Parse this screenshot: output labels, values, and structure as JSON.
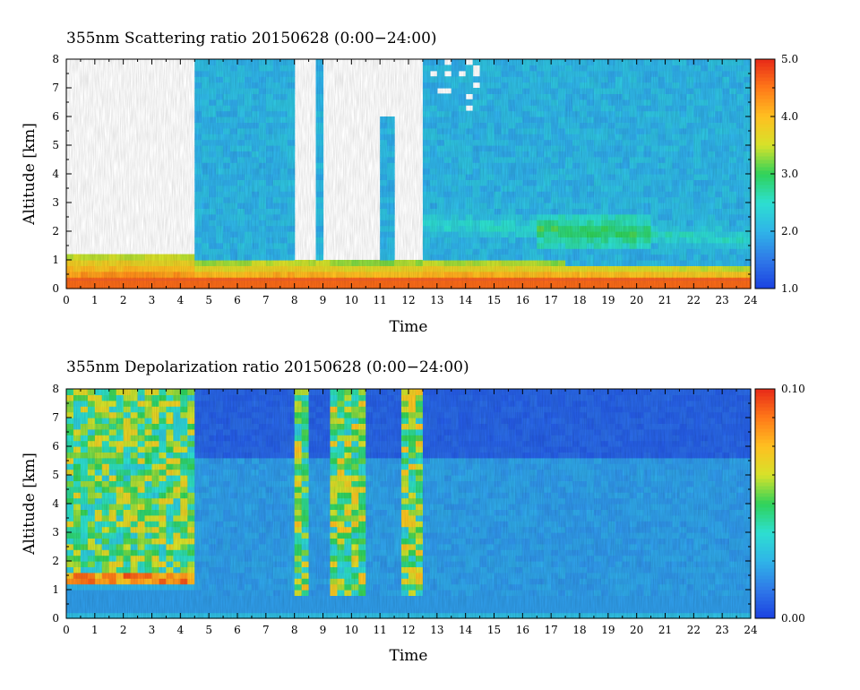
{
  "colors": {
    "colormap": [
      "#1b40e0",
      "#2f78e8",
      "#2fb4e8",
      "#2ddfd0",
      "#2fd25a",
      "#d6e22a",
      "#ffc020",
      "#ff7a18",
      "#e82a18"
    ],
    "no_data": "#ffffff",
    "ground_line": "#e55a2a"
  },
  "chart_data": [
    {
      "type": "heatmap",
      "title": "355nm Scattering ratio  20150628 (0:00−24:00)",
      "xlabel": "Time",
      "ylabel": "Altitude [km]",
      "xlim": [
        0,
        24
      ],
      "ylim": [
        0,
        8
      ],
      "xticks": [
        "0",
        "1",
        "2",
        "3",
        "4",
        "5",
        "6",
        "7",
        "8",
        "9",
        "10",
        "11",
        "12",
        "13",
        "14",
        "15",
        "16",
        "17",
        "18",
        "19",
        "20",
        "21",
        "22",
        "23",
        "24"
      ],
      "yticks": [
        "0",
        "1",
        "2",
        "3",
        "4",
        "5",
        "6",
        "7",
        "8"
      ],
      "colorbar": {
        "min": 1.0,
        "max": 5.0,
        "ticks": [
          "1.0",
          "2.0",
          "3.0",
          "4.0",
          "5.0"
        ]
      },
      "regions": [
        {
          "description": "no data above boundary layer",
          "time": [
            0,
            4.6
          ],
          "altitude": [
            1.3,
            8
          ],
          "value": null
        },
        {
          "description": "boundary layer top (aerosol)",
          "time": [
            0,
            24
          ],
          "altitude": [
            0.5,
            1.0
          ],
          "value": 3.5
        },
        {
          "description": "free troposphere background",
          "time": [
            4.6,
            24
          ],
          "altitude": [
            1.2,
            8
          ],
          "value": 1.7
        },
        {
          "description": "no data gaps",
          "time": [
            7.9,
            12.5
          ],
          "altitude": [
            1.0,
            8
          ],
          "value": null
        },
        {
          "description": "elevated aerosol layer",
          "time": [
            16.5,
            20.5
          ],
          "altitude": [
            1.5,
            2.6
          ],
          "value": 2.6
        }
      ]
    },
    {
      "type": "heatmap",
      "title": "355nm Depolarization ratio  20150628 (0:00−24:00)",
      "xlabel": "Time",
      "ylabel": "Altitude [km]",
      "xlim": [
        0,
        24
      ],
      "ylim": [
        0,
        8
      ],
      "xticks": [
        "0",
        "1",
        "2",
        "3",
        "4",
        "5",
        "6",
        "7",
        "8",
        "9",
        "10",
        "11",
        "12",
        "13",
        "14",
        "15",
        "16",
        "17",
        "18",
        "19",
        "20",
        "21",
        "22",
        "23",
        "24"
      ],
      "yticks": [
        "0",
        "1",
        "2",
        "3",
        "4",
        "5",
        "6",
        "7",
        "8"
      ],
      "colorbar": {
        "min": 0.0,
        "max": 0.1,
        "ticks": [
          "0.00",
          "0.10"
        ]
      },
      "regions": [
        {
          "description": "noisy high depolarization",
          "time": [
            0,
            4.5
          ],
          "altitude": [
            1.2,
            8
          ],
          "value": 0.05
        },
        {
          "description": "layer near 1.3 km",
          "time": [
            0,
            4.5
          ],
          "altitude": [
            1.1,
            1.6
          ],
          "value": 0.09
        },
        {
          "description": "low background",
          "time": [
            4.5,
            24
          ],
          "altitude": [
            0,
            8
          ],
          "value": 0.01
        },
        {
          "description": "noisy columns",
          "time": [
            8.0,
            12.6
          ],
          "altitude": [
            0.9,
            8
          ],
          "value": 0.05
        }
      ]
    }
  ]
}
